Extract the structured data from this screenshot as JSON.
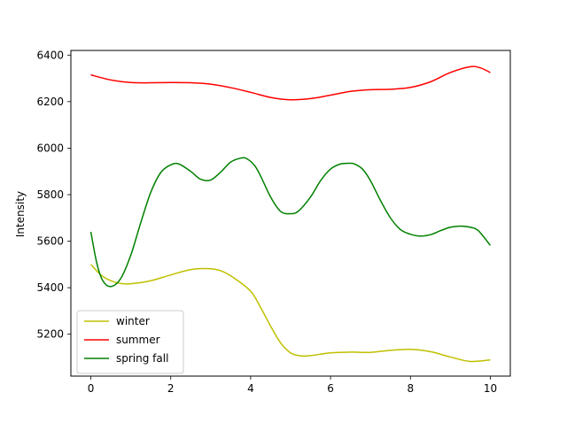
{
  "chart_data": {
    "type": "line",
    "ylabel": "Intensity",
    "xlabel": "",
    "xlim": [
      -0.5,
      10.5
    ],
    "ylim": [
      5020,
      6420
    ],
    "xticks": [
      0,
      2,
      4,
      6,
      8,
      10
    ],
    "yticks": [
      5200,
      5400,
      5600,
      5800,
      6000,
      6200,
      6400
    ],
    "grid": false,
    "legend_position": "lower-left",
    "series": [
      {
        "name": "winter",
        "color": "#bfbf00",
        "x": [
          0,
          0.25,
          0.5,
          0.75,
          1,
          1.5,
          2,
          2.5,
          2.9,
          3.25,
          3.6,
          4,
          4.25,
          4.5,
          4.75,
          5,
          5.25,
          5.5,
          6,
          6.5,
          7,
          7.5,
          8,
          8.5,
          9,
          9.5,
          10
        ],
        "y": [
          5500,
          5455,
          5430,
          5418,
          5417,
          5430,
          5455,
          5478,
          5482,
          5473,
          5440,
          5385,
          5315,
          5235,
          5163,
          5120,
          5107,
          5108,
          5120,
          5123,
          5122,
          5131,
          5135,
          5125,
          5102,
          5083,
          5090
        ]
      },
      {
        "name": "summer",
        "color": "#ff0000",
        "x": [
          0,
          0.5,
          1,
          1.5,
          2,
          2.5,
          3,
          3.5,
          4,
          4.5,
          5,
          5.5,
          6,
          6.5,
          7,
          7.5,
          8,
          8.5,
          9,
          9.5,
          9.75,
          10
        ],
        "y": [
          6315,
          6293,
          6282,
          6281,
          6282,
          6281,
          6275,
          6260,
          6240,
          6218,
          6208,
          6213,
          6228,
          6244,
          6251,
          6253,
          6261,
          6285,
          6325,
          6350,
          6345,
          6325
        ]
      },
      {
        "name": "spring fall",
        "color": "#008000",
        "x": [
          0,
          0.15,
          0.3,
          0.5,
          0.75,
          1,
          1.25,
          1.5,
          1.75,
          2,
          2.2,
          2.5,
          2.75,
          3,
          3.25,
          3.5,
          3.75,
          3.9,
          4.1,
          4.25,
          4.5,
          4.75,
          5,
          5.2,
          5.5,
          5.75,
          6,
          6.25,
          6.5,
          6.6,
          6.8,
          7,
          7.25,
          7.5,
          7.75,
          8,
          8.25,
          8.5,
          8.75,
          9,
          9.25,
          9.5,
          9.7,
          10
        ],
        "y": [
          5640,
          5505,
          5430,
          5405,
          5440,
          5540,
          5680,
          5810,
          5895,
          5928,
          5932,
          5900,
          5866,
          5863,
          5897,
          5940,
          5957,
          5955,
          5925,
          5880,
          5790,
          5728,
          5718,
          5730,
          5790,
          5860,
          5910,
          5932,
          5935,
          5932,
          5910,
          5860,
          5775,
          5700,
          5650,
          5630,
          5622,
          5628,
          5645,
          5660,
          5665,
          5660,
          5645,
          5582
        ]
      }
    ]
  }
}
